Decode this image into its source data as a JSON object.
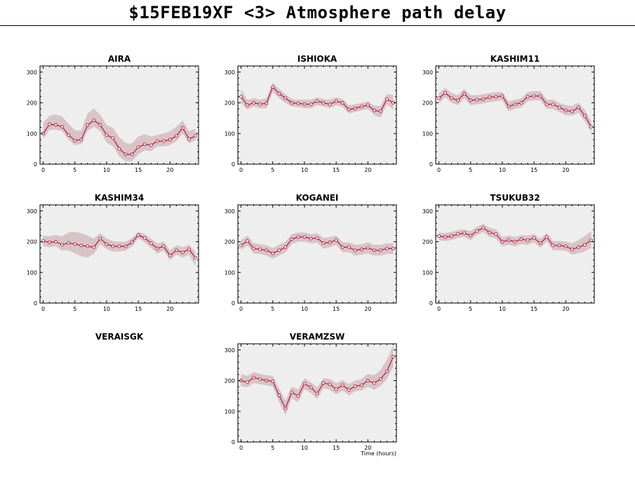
{
  "title": "$15FEB19XF <3>  Atmosphere path delay",
  "colors": {
    "background": "#ffffff",
    "plot_bg": "#eeeeee",
    "band": "#d8c4c7",
    "line": "#b01840",
    "marker_fill": "#ffffff",
    "axis": "#000000"
  },
  "chart_data": [
    {
      "type": "line",
      "title": "AIRA",
      "xlim": [
        -0.5,
        24.5
      ],
      "ylim": [
        0,
        320
      ],
      "xticks": [
        0,
        5,
        10,
        15,
        20
      ],
      "yticks": [
        0,
        100,
        200,
        300
      ],
      "series": [
        {
          "x": [
            0,
            1,
            2,
            3,
            4,
            5,
            6,
            7,
            8,
            9,
            10,
            11,
            12,
            13,
            14,
            15,
            16,
            17,
            18,
            19,
            20,
            21,
            22,
            23,
            24
          ],
          "values": [
            100,
            130,
            128,
            122,
            95,
            77,
            80,
            127,
            143,
            128,
            95,
            85,
            50,
            32,
            32,
            55,
            65,
            62,
            75,
            75,
            80,
            92,
            118,
            82,
            92
          ],
          "upper": [
            135,
            158,
            162,
            155,
            132,
            110,
            110,
            165,
            182,
            160,
            128,
            118,
            88,
            68,
            68,
            90,
            98,
            90,
            95,
            100,
            108,
            122,
            142,
            108,
            115
          ],
          "lower": [
            82,
            112,
            112,
            108,
            80,
            62,
            65,
            108,
            122,
            108,
            70,
            58,
            25,
            10,
            10,
            32,
            45,
            42,
            58,
            58,
            62,
            75,
            100,
            68,
            78
          ]
        }
      ]
    },
    {
      "type": "line",
      "title": "ISHIOKA",
      "xlim": [
        -0.5,
        24.5
      ],
      "ylim": [
        0,
        320
      ],
      "xticks": [
        0,
        5,
        10,
        15,
        20
      ],
      "yticks": [
        0,
        100,
        200,
        300
      ],
      "series": [
        {
          "x": [
            0,
            1,
            2,
            3,
            4,
            5,
            6,
            7,
            8,
            9,
            10,
            11,
            12,
            13,
            14,
            15,
            16,
            17,
            18,
            19,
            20,
            21,
            22,
            23,
            24
          ],
          "values": [
            220,
            192,
            200,
            196,
            198,
            252,
            230,
            215,
            200,
            198,
            196,
            195,
            205,
            200,
            195,
            205,
            200,
            178,
            182,
            188,
            192,
            175,
            172,
            212,
            200
          ],
          "upper": [
            245,
            210,
            215,
            210,
            215,
            265,
            245,
            228,
            212,
            210,
            210,
            210,
            218,
            212,
            210,
            218,
            212,
            192,
            195,
            200,
            205,
            190,
            190,
            228,
            225
          ],
          "lower": [
            200,
            178,
            188,
            182,
            182,
            235,
            215,
            200,
            188,
            186,
            182,
            182,
            192,
            188,
            182,
            192,
            186,
            165,
            170,
            175,
            180,
            160,
            152,
            195,
            178
          ]
        }
      ]
    },
    {
      "type": "line",
      "title": "KASHIM11",
      "xlim": [
        -0.5,
        24.5
      ],
      "ylim": [
        0,
        320
      ],
      "xticks": [
        0,
        5,
        10,
        15,
        20
      ],
      "yticks": [
        0,
        100,
        200,
        300
      ],
      "series": [
        {
          "x": [
            0,
            1,
            2,
            3,
            4,
            5,
            6,
            7,
            8,
            9,
            10,
            11,
            12,
            13,
            14,
            15,
            16,
            17,
            18,
            19,
            20,
            21,
            22,
            23,
            24
          ],
          "values": [
            215,
            232,
            215,
            208,
            230,
            208,
            210,
            212,
            218,
            220,
            222,
            188,
            195,
            200,
            220,
            222,
            222,
            195,
            195,
            185,
            175,
            172,
            185,
            158,
            122
          ],
          "upper": [
            232,
            248,
            232,
            225,
            245,
            225,
            225,
            228,
            232,
            235,
            235,
            205,
            210,
            215,
            235,
            238,
            238,
            210,
            210,
            200,
            192,
            190,
            200,
            178,
            140
          ],
          "lower": [
            198,
            218,
            200,
            192,
            215,
            192,
            195,
            198,
            202,
            205,
            208,
            172,
            180,
            185,
            205,
            208,
            208,
            180,
            180,
            170,
            160,
            158,
            168,
            140,
            105
          ]
        }
      ]
    },
    {
      "type": "line",
      "title": "KASHIM34",
      "xlim": [
        -0.5,
        24.5
      ],
      "ylim": [
        0,
        320
      ],
      "xticks": [
        0,
        5,
        10,
        15,
        20
      ],
      "yticks": [
        0,
        100,
        200,
        300
      ],
      "series": [
        {
          "x": [
            0,
            1,
            2,
            3,
            4,
            5,
            6,
            7,
            8,
            9,
            10,
            11,
            12,
            13,
            14,
            15,
            16,
            17,
            18,
            19,
            20,
            21,
            22,
            23,
            24
          ],
          "values": [
            202,
            198,
            200,
            190,
            196,
            192,
            188,
            185,
            182,
            210,
            192,
            185,
            185,
            185,
            198,
            222,
            212,
            195,
            178,
            185,
            155,
            172,
            165,
            175,
            148
          ],
          "upper": [
            220,
            218,
            222,
            218,
            230,
            232,
            228,
            220,
            210,
            228,
            210,
            202,
            200,
            200,
            212,
            232,
            225,
            210,
            195,
            200,
            172,
            188,
            182,
            190,
            168
          ],
          "lower": [
            185,
            182,
            185,
            172,
            172,
            162,
            152,
            148,
            160,
            192,
            175,
            168,
            168,
            170,
            185,
            210,
            198,
            180,
            162,
            170,
            140,
            158,
            148,
            158,
            120
          ]
        }
      ]
    },
    {
      "type": "line",
      "title": "KOGANEI",
      "xlim": [
        -0.5,
        24.5
      ],
      "ylim": [
        0,
        320
      ],
      "xticks": [
        0,
        5,
        10,
        15,
        20
      ],
      "yticks": [
        0,
        100,
        200,
        300
      ],
      "series": [
        {
          "x": [
            0,
            1,
            2,
            3,
            4,
            5,
            6,
            7,
            8,
            9,
            10,
            11,
            12,
            13,
            14,
            15,
            16,
            17,
            18,
            19,
            20,
            21,
            22,
            23,
            24
          ],
          "values": [
            188,
            202,
            178,
            175,
            172,
            162,
            172,
            182,
            208,
            215,
            215,
            210,
            212,
            195,
            198,
            205,
            182,
            182,
            172,
            175,
            180,
            172,
            172,
            178,
            178
          ],
          "upper": [
            205,
            220,
            195,
            192,
            188,
            180,
            190,
            200,
            225,
            230,
            230,
            225,
            228,
            212,
            215,
            220,
            198,
            198,
            190,
            192,
            198,
            190,
            190,
            195,
            195
          ],
          "lower": [
            172,
            188,
            162,
            160,
            155,
            145,
            155,
            165,
            192,
            200,
            200,
            195,
            196,
            178,
            182,
            190,
            166,
            166,
            155,
            158,
            162,
            155,
            155,
            160,
            160
          ]
        }
      ]
    },
    {
      "type": "line",
      "title": "TSUKUB32",
      "xlim": [
        -0.5,
        24.5
      ],
      "ylim": [
        0,
        320
      ],
      "xticks": [
        0,
        5,
        10,
        15,
        20
      ],
      "yticks": [
        0,
        100,
        200,
        300
      ],
      "series": [
        {
          "x": [
            0,
            1,
            2,
            3,
            4,
            5,
            6,
            7,
            8,
            9,
            10,
            11,
            12,
            13,
            14,
            15,
            16,
            17,
            18,
            19,
            20,
            21,
            22,
            23,
            24
          ],
          "values": [
            218,
            215,
            218,
            225,
            228,
            220,
            235,
            245,
            230,
            225,
            200,
            205,
            200,
            208,
            205,
            212,
            195,
            215,
            188,
            188,
            185,
            175,
            182,
            190,
            205
          ],
          "upper": [
            230,
            228,
            232,
            238,
            240,
            235,
            248,
            258,
            245,
            240,
            215,
            220,
            215,
            222,
            220,
            225,
            210,
            228,
            202,
            202,
            200,
            195,
            205,
            218,
            235
          ],
          "lower": [
            205,
            202,
            205,
            212,
            215,
            205,
            222,
            232,
            215,
            210,
            185,
            190,
            185,
            192,
            190,
            198,
            180,
            200,
            172,
            172,
            170,
            158,
            162,
            168,
            180
          ]
        }
      ]
    },
    {
      "type": "line",
      "title": "VERAISGK",
      "series": []
    },
    {
      "type": "line",
      "title": "VERAMZSW",
      "xlabel": "Time (hours)",
      "xlim": [
        -0.5,
        24.5
      ],
      "ylim": [
        0,
        320
      ],
      "xticks": [
        0,
        5,
        10,
        15,
        20
      ],
      "yticks": [
        0,
        100,
        200,
        300
      ],
      "series": [
        {
          "x": [
            0,
            1,
            2,
            3,
            4,
            5,
            6,
            7,
            8,
            9,
            10,
            11,
            12,
            13,
            14,
            15,
            16,
            17,
            18,
            19,
            20,
            21,
            22,
            23,
            24
          ],
          "values": [
            200,
            195,
            210,
            205,
            200,
            198,
            152,
            110,
            162,
            150,
            190,
            178,
            158,
            192,
            188,
            172,
            185,
            170,
            182,
            185,
            200,
            192,
            205,
            230,
            278
          ],
          "upper": [
            222,
            215,
            228,
            222,
            218,
            215,
            175,
            135,
            180,
            172,
            208,
            195,
            178,
            208,
            205,
            192,
            202,
            188,
            200,
            205,
            222,
            218,
            235,
            268,
            318
          ],
          "lower": [
            182,
            178,
            192,
            188,
            185,
            180,
            130,
            88,
            142,
            130,
            172,
            160,
            140,
            175,
            170,
            155,
            168,
            152,
            165,
            168,
            180,
            170,
            182,
            205,
            245
          ]
        }
      ]
    }
  ]
}
